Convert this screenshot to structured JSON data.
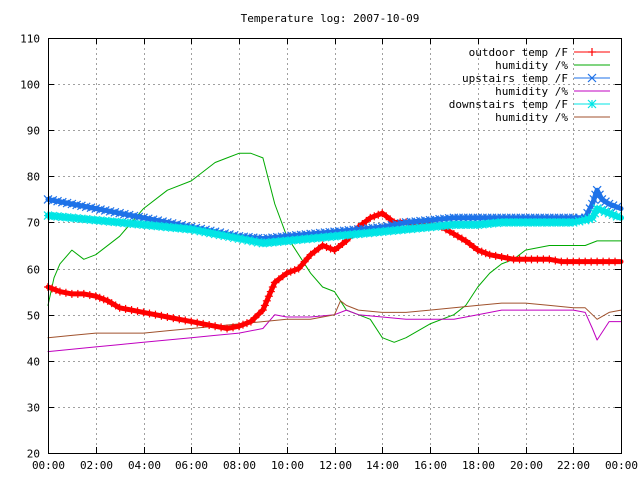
{
  "chart_data": {
    "type": "line",
    "title": "Temperature log: 2007-10-09",
    "xlabel": "",
    "ylabel": "",
    "x_unit": "hours",
    "xlim": [
      0,
      24
    ],
    "ylim": [
      20,
      110
    ],
    "grid": true,
    "legend_position": "top-right",
    "x_tick_labels": [
      "00:00",
      "02:00",
      "04:00",
      "06:00",
      "08:00",
      "10:00",
      "12:00",
      "14:00",
      "16:00",
      "18:00",
      "20:00",
      "22:00",
      "00:00"
    ],
    "x_tick_values": [
      0,
      2,
      4,
      6,
      8,
      10,
      12,
      14,
      16,
      18,
      20,
      22,
      24
    ],
    "y_tick_values": [
      20,
      30,
      40,
      50,
      60,
      70,
      80,
      90,
      100,
      110
    ],
    "y_tick_labels": [
      "20",
      "30",
      "40",
      "50",
      "60",
      "70",
      "80",
      "90",
      "100",
      "110"
    ],
    "series": [
      {
        "name": "outdoor temp /F",
        "color": "#ff0000",
        "marker": "plus",
        "width": 5,
        "x": [
          0,
          0.5,
          1,
          1.5,
          2,
          2.5,
          3,
          3.5,
          4,
          4.5,
          5,
          5.5,
          6,
          6.5,
          7,
          7.5,
          8,
          8.5,
          9,
          9.25,
          9.5,
          10,
          10.5,
          11,
          11.5,
          12,
          12.5,
          13,
          13.5,
          14,
          14.5,
          15,
          15.5,
          16,
          16.5,
          17,
          17.5,
          18,
          18.5,
          19,
          19.5,
          20,
          20.5,
          21,
          21.5,
          22,
          22.5,
          23,
          23.5,
          24
        ],
        "y": [
          56,
          55,
          54.5,
          54.5,
          54,
          53,
          51.5,
          51,
          50.5,
          50,
          49.5,
          49,
          48.5,
          48,
          47.5,
          47,
          47.5,
          48.5,
          51,
          54,
          57,
          59,
          60,
          63,
          65,
          64,
          66,
          69,
          71,
          72,
          70,
          70,
          69.5,
          69.5,
          69,
          67.5,
          66,
          64,
          63,
          62.5,
          62,
          62,
          62,
          62,
          61.5,
          61.5,
          61.5,
          61.5,
          61.5,
          61.5
        ]
      },
      {
        "name": "humidity /%",
        "color": "#00aa00",
        "marker": "",
        "width": 1,
        "x": [
          0,
          0.25,
          0.5,
          1,
          1.5,
          2,
          3,
          4,
          5,
          6,
          7,
          7.5,
          8,
          8.5,
          9,
          9.5,
          10,
          11,
          11.5,
          12,
          12.25,
          12.5,
          13,
          13.5,
          14,
          14.5,
          15,
          16,
          17,
          17.5,
          18,
          18.5,
          19,
          19.5,
          20,
          21,
          22,
          22.5,
          23,
          23.5,
          24
        ],
        "y": [
          52,
          58,
          61,
          64,
          62,
          63,
          67,
          73,
          77,
          79,
          83,
          84,
          85,
          85,
          84,
          74,
          67,
          59,
          56,
          55,
          53,
          51,
          50,
          49,
          45,
          44,
          45,
          48,
          50,
          52,
          56,
          59,
          61,
          62,
          64,
          65,
          65,
          65,
          66,
          66,
          66
        ]
      },
      {
        "name": "upstairs temp /F",
        "color": "#1e72e8",
        "marker": "x",
        "width": 5,
        "x": [
          0,
          1,
          2,
          3,
          4,
          5,
          6,
          7,
          8,
          9,
          10,
          11,
          12,
          13,
          14,
          15,
          16,
          17,
          18,
          19,
          20,
          21,
          22,
          22.5,
          22.8,
          23,
          23.2,
          23.5,
          24
        ],
        "y": [
          75,
          74,
          73,
          72,
          71,
          70,
          69,
          68,
          67,
          66.5,
          67,
          67.5,
          68,
          68.5,
          69,
          70,
          70.5,
          71,
          71,
          71,
          71,
          71,
          71,
          71,
          74,
          77,
          75,
          74,
          73
        ]
      },
      {
        "name": "humidity /%",
        "color": "#c000c0",
        "marker": "",
        "width": 1,
        "x": [
          0,
          1,
          2,
          3,
          4,
          5,
          6,
          7,
          8,
          9,
          9.5,
          10,
          11,
          12,
          12.5,
          13,
          14,
          15,
          16,
          17,
          18,
          19,
          20,
          21,
          22,
          22.5,
          22.8,
          23,
          23.5,
          24
        ],
        "y": [
          42,
          42.5,
          43,
          43.5,
          44,
          44.5,
          45,
          45.5,
          46,
          47,
          50,
          49.5,
          49.5,
          50,
          51,
          50,
          49.5,
          49,
          49,
          49,
          50,
          51,
          51,
          51,
          51,
          50.5,
          47,
          44.5,
          48.5,
          48.5
        ]
      },
      {
        "name": "downstairs temp /F",
        "color": "#00e5e5",
        "marker": "star",
        "width": 6,
        "x": [
          0,
          1,
          2,
          3,
          4,
          5,
          6,
          7,
          8,
          9,
          10,
          11,
          12,
          13,
          14,
          15,
          16,
          17,
          18,
          19,
          20,
          21,
          22,
          22.5,
          22.8,
          23,
          23.5,
          24
        ],
        "y": [
          71.5,
          71,
          70.5,
          70,
          69.5,
          69,
          68.5,
          67.5,
          66.5,
          65.5,
          66,
          66.5,
          67,
          67.5,
          68,
          68.5,
          69,
          69.5,
          69.5,
          70,
          70,
          70,
          70,
          70.5,
          71,
          73,
          72,
          71
        ]
      },
      {
        "name": "humidity /%",
        "color": "#a0522d",
        "marker": "",
        "width": 1,
        "x": [
          0,
          1,
          2,
          3,
          4,
          5,
          6,
          7,
          8,
          9,
          10,
          11,
          12,
          12.25,
          12.5,
          13,
          14,
          15,
          16,
          17,
          18,
          19,
          20,
          21,
          22,
          22.5,
          22.8,
          23,
          23.5,
          24
        ],
        "y": [
          45,
          45.5,
          46,
          46,
          46,
          46.5,
          47,
          47.5,
          48,
          48.5,
          49,
          49,
          50,
          53,
          52,
          51,
          50.5,
          50.5,
          51,
          51.5,
          52,
          52.5,
          52.5,
          52,
          51.5,
          51.5,
          50,
          49,
          50.5,
          51
        ]
      }
    ]
  }
}
